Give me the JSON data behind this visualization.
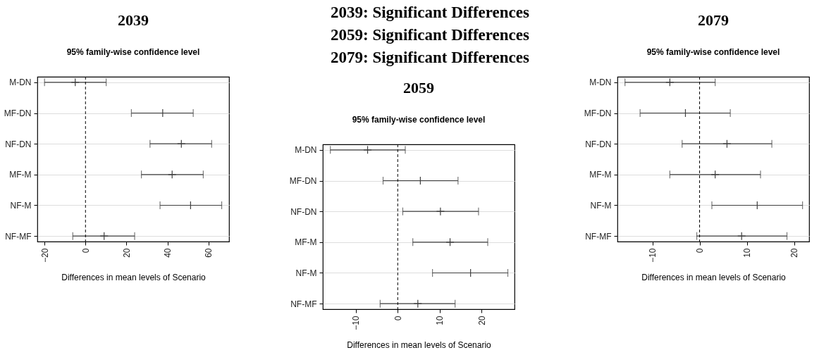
{
  "chart_data": [
    {
      "type": "scatter",
      "orientation": "horizontal",
      "title": "2039",
      "subtitle": "95% family-wise confidence level",
      "xlabel": "Differences in mean levels of Scenario",
      "categories": [
        "M-DN",
        "MF-DN",
        "NF-DN",
        "MF-M",
        "NF-M",
        "NF-MF"
      ],
      "color": "#404040",
      "values": [
        -5,
        37.7,
        46.8,
        42.3,
        51.3,
        9.1
      ],
      "errors": [
        [
          -20,
          10.1
        ],
        [
          22.4,
          52.6
        ],
        [
          31.5,
          61.6
        ],
        [
          27.3,
          57.5
        ],
        [
          36.4,
          66.5
        ],
        [
          -6.2,
          24
        ]
      ],
      "xlim": [
        -23.5,
        70.1
      ],
      "xticks": [
        -20,
        0,
        20,
        40,
        60
      ],
      "grid": "y",
      "ref_lines": [
        {
          "axis": "x",
          "value": 0,
          "line_style": "dashed",
          "color": "#000000"
        }
      ]
    },
    {
      "type": "scatter",
      "orientation": "horizontal",
      "title": "2059",
      "subtitle": "95% family-wise confidence level",
      "xlabel": "Differences in mean levels of Scenario",
      "categories": [
        "M-DN",
        "MF-DN",
        "NF-DN",
        "MF-M",
        "NF-M",
        "NF-MF"
      ],
      "color": "#404040",
      "annotations": [
        "2039: Significant Differences",
        "2059: Significant Differences",
        "2079: Significant Differences"
      ],
      "values": [
        -7.2,
        5.4,
        10.2,
        12.5,
        17.4,
        4.8
      ],
      "errors": [
        [
          -16.1,
          1.8
        ],
        [
          -3.5,
          14.4
        ],
        [
          1.2,
          19.3
        ],
        [
          3.6,
          21.5
        ],
        [
          8.3,
          26.3
        ],
        [
          -4.2,
          13.7
        ]
      ],
      "xlim": [
        -17.9,
        27.9
      ],
      "xticks": [
        -10,
        0,
        10,
        20
      ],
      "grid": "y",
      "ref_lines": [
        {
          "axis": "x",
          "value": 0,
          "line_style": "dashed",
          "color": "#000000"
        }
      ]
    },
    {
      "type": "scatter",
      "orientation": "horizontal",
      "title": "2079",
      "subtitle": "95% family-wise confidence level",
      "xlabel": "Differences in mean levels of Scenario",
      "categories": [
        "M-DN",
        "MF-DN",
        "NF-DN",
        "MF-M",
        "NF-M",
        "NF-MF"
      ],
      "color": "#404040",
      "values": [
        -6.3,
        -3,
        5.8,
        3.3,
        12.2,
        8.9
      ],
      "errors": [
        [
          -15.8,
          3.3
        ],
        [
          -12.6,
          6.5
        ],
        [
          -3.7,
          15.3
        ],
        [
          -6.3,
          12.9
        ],
        [
          2.6,
          21.8
        ],
        [
          -0.6,
          18.5
        ]
      ],
      "xlim": [
        -17.4,
        23.2
      ],
      "xticks": [
        -10,
        0,
        10,
        20
      ],
      "grid": "y",
      "ref_lines": [
        {
          "axis": "x",
          "value": 0,
          "line_style": "dashed",
          "color": "#000000"
        }
      ]
    }
  ]
}
